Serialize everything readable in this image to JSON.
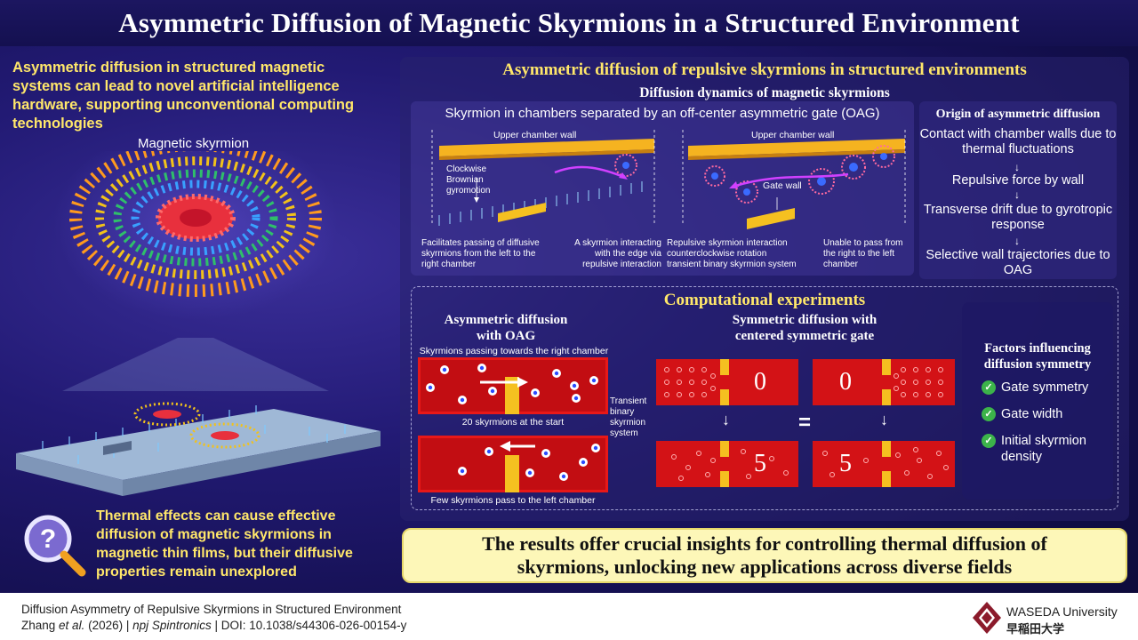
{
  "title": "Asymmetric Diffusion of Magnetic Skyrmions in a Structured Environment",
  "left": {
    "intro": "Asymmetric diffusion in structured magnetic systems can lead to novel artificial intelligence hardware, supporting unconventional computing technologies",
    "skyrmion_label": "Magnetic skyrmion",
    "thermal_text": "Thermal effects can cause effective diffusion of magnetic skyrmions in magnetic thin films, but their diffusive properties remain unexplored"
  },
  "main": {
    "title": "Asymmetric diffusion of repulsive skyrmions in structured environments",
    "dynamics": {
      "title": "Diffusion dynamics of magnetic skyrmions",
      "subtitle": "Skyrmion in chambers separated by an off-center asymmetric gate (OAG)",
      "upper_wall_left": "Upper chamber wall",
      "upper_wall_right": "Upper chamber wall",
      "gyromotion": "Clockwise\nBrownian\ngyromotion",
      "gate_wall": "Gate wall",
      "cap_left_1": "Facilitates passing of diffusive skyrmions from the left to the right chamber",
      "cap_left_2": "A skyrmion interacting with the edge via repulsive interaction",
      "cap_right_1a": "Repulsive skyrmion interaction",
      "cap_right_1b": "counterclockwise rotation",
      "cap_right_1c": "transient binary skyrmion system",
      "cap_right_2": "Unable to pass from the right to the left chamber"
    },
    "origin": {
      "title": "Origin of asymmetric diffusion",
      "steps": [
        "Contact with chamber walls due to thermal fluctuations",
        "Repulsive force by wall",
        "Transverse drift due to gyrotropic response",
        "Selective wall trajectories due to OAG"
      ]
    },
    "experiments": {
      "title": "Computational experiments",
      "asym_head": "Asymmetric diffusion with OAG",
      "asym_top_caption": "Skyrmions passing towards the right chamber",
      "asym_mid_caption": "20 skyrmions at the start",
      "asym_bottom_caption": "Few skyrmions pass to the left chamber",
      "transient": "Transient binary skyrmion system",
      "sym_head": "Symmetric diffusion with centered symmetric gate",
      "count_top_left": "0",
      "count_top_right": "0",
      "count_bottom_left": "5",
      "count_bottom_right": "5",
      "equals": "="
    },
    "factors": {
      "title": "Factors influencing diffusion symmetry",
      "items": [
        "Gate symmetry",
        "Gate width",
        "Initial skyrmion density"
      ]
    }
  },
  "results": "The results offer crucial insights for controlling thermal diffusion of skyrmions, unlocking new applications across diverse fields",
  "footer": {
    "paper_title": "Diffusion Asymmetry of Repulsive Skyrmions in Structured Environment",
    "authors": "Zhang",
    "etal": "et al.",
    "year": "(2026) |",
    "journal": "npj Spintronics",
    "doi": "| DOI: 10.1038/s44306-026-00154-y",
    "university": "WASEDA University",
    "university_jp": "早稲田大学"
  },
  "colors": {
    "accent_yellow": "#ffe76a",
    "background": "#1a1460",
    "result_box": "#fdf7b8",
    "check": "#3cb34a"
  }
}
